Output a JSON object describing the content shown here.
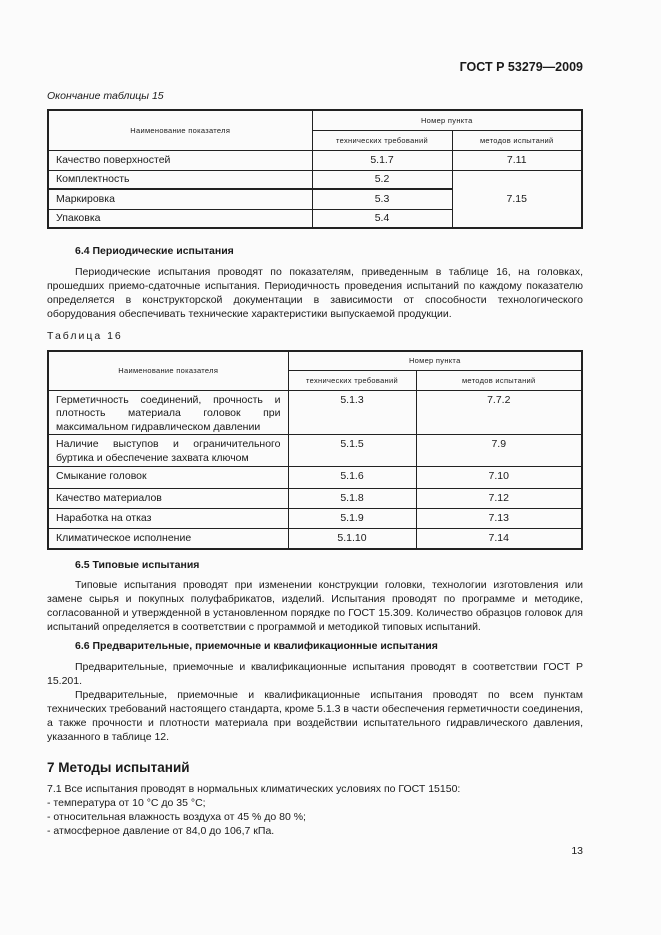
{
  "header": {
    "doc_code": "ГОСТ Р 53279—2009"
  },
  "table15": {
    "caption": "Окончание таблицы 15",
    "col_name": "Наименование показателя",
    "col_group": "Номер пункта",
    "col_tech": "технических требований",
    "col_method": "методов испытаний",
    "rows": [
      {
        "name": "Качество поверхностей",
        "tech": "5.1.7",
        "method": "7.11"
      },
      {
        "name": "Комплектность",
        "tech": "5.2",
        "method": "7.15"
      },
      {
        "name": "Маркировка",
        "tech": "5.3"
      },
      {
        "name": "Упаковка",
        "tech": "5.4"
      }
    ]
  },
  "s64": {
    "heading": "6.4 Периодические испытания",
    "text": "Периодические испытания проводят по показателям, приведенным в таблице 16, на головках, прошедших приемо-сдаточные испытания. Периодичность проведения испытаний по каждому показателю определяется в конструкторской документации в зависимости от способности технологического оборудования обеспечивать технические характеристики выпускаемой продукции."
  },
  "table16": {
    "caption": "Таблица 16",
    "col_name": "Наименование показателя",
    "col_group": "Номер пункта",
    "col_tech": "технических требований",
    "col_method": "методов испытаний",
    "rows": [
      {
        "name": "Герметичность соединений, прочность и плотность материала головок при максимальном гидравлическом давлении",
        "tech": "5.1.3",
        "method": "7.7.2"
      },
      {
        "name": "Наличие выступов и ограничительного буртика и обеспечение захвата ключом",
        "tech": "5.1.5",
        "method": "7.9"
      },
      {
        "name": "Смыкание головок",
        "tech": "5.1.6",
        "method": "7.10"
      },
      {
        "name": "Качество материалов",
        "tech": "5.1.8",
        "method": "7.12"
      },
      {
        "name": "Наработка на отказ",
        "tech": "5.1.9",
        "method": "7.13"
      },
      {
        "name": "Климатическое исполнение",
        "tech": "5.1.10",
        "method": "7.14"
      }
    ]
  },
  "s65": {
    "heading": "6.5 Типовые испытания",
    "text": "Типовые испытания проводят при изменении конструкции головки, технологии изготовления или замене сырья и покупных полуфабрикатов, изделий. Испытания проводят по программе и методике, согласованной и утвержденной в установленном порядке по ГОСТ 15.309. Количество образцов головок для испытаний определяется в соответствии с программой и методикой типовых испытаний."
  },
  "s66": {
    "heading": "6.6 Предварительные, приемочные и квалификационные испытания",
    "p1": "Предварительные, приемочные и квалификационные испытания проводят в соответствии ГОСТ Р 15.201.",
    "p2": "Предварительные, приемочные и квалификационные испытания проводят по всем пунктам технических требований настоящего стандарта, кроме 5.1.3 в части обеспечения герметичности соединения, а также прочности и плотности материала при воздействии испытательного гидравлического давления, указанного в таблице 12."
  },
  "s7": {
    "heading": "7 Методы испытаний",
    "lines": [
      "7.1 Все испытания проводят в нормальных климатических условиях по ГОСТ 15150:",
      "- температура от 10 °С до 35 °С;",
      "- относительная влажность воздуха от 45 % до 80 %;",
      "- атмосферное давление от 84,0 до 106,7 кПа."
    ]
  },
  "footer": {
    "page_number": "13"
  }
}
